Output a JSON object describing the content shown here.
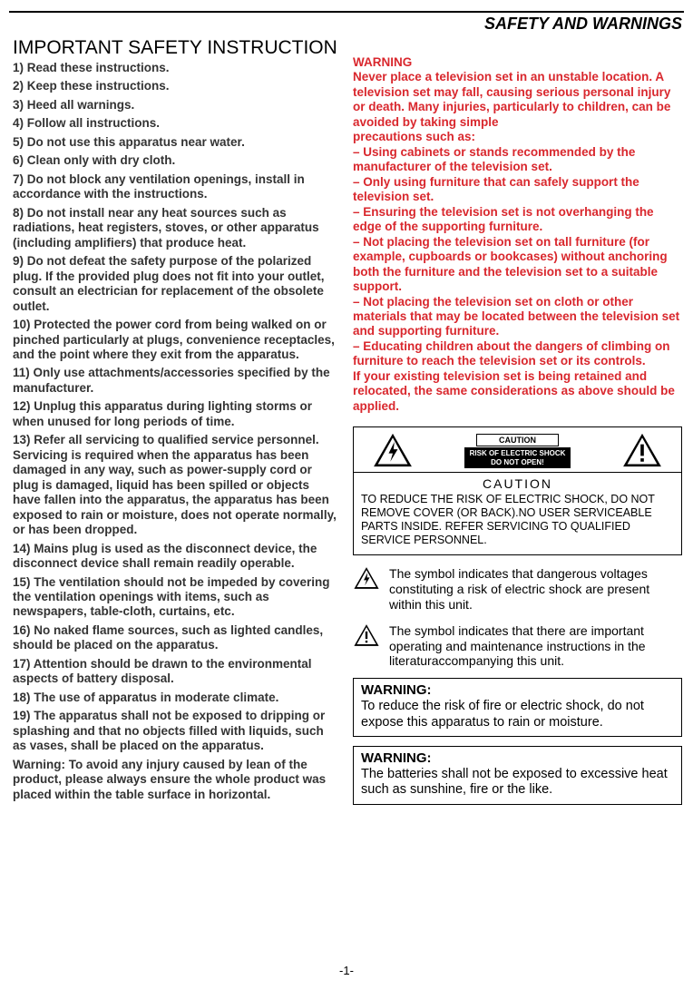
{
  "header": "SAFETY AND WARNINGS",
  "section_title": "IMPORTANT SAFETY INSTRUCTION",
  "instructions": [
    "1) Read these instructions.",
    "2) Keep these instructions.",
    "3) Heed all warnings.",
    "4) Follow all instructions.",
    "5) Do not use this apparatus near water.",
    "6) Clean only with dry cloth.",
    "7) Do not block any ventilation openings, install in accordance with the instructions.",
    "8) Do not install near any heat sources such as radiations, heat registers, stoves, or other apparatus (including amplifiers) that produce heat.",
    "9) Do not defeat the safety purpose of the polarized plug. If the provided plug does not fit into your outlet, consult an electrician for replacement of the obsolete outlet.",
    "10) Protected the power cord from being walked on or pinched particularly at plugs, convenience receptacles, and the point where they exit from the apparatus.",
    "11) Only use attachments/accessories specified by the manufacturer.",
    "12) Unplug this apparatus during lighting storms or when unused for long periods of time.",
    "13) Refer all servicing to qualified service personnel. Servicing is required when the apparatus has been damaged in any way, such as power-supply cord or plug is damaged, liquid has been spilled or objects have fallen into the apparatus, the apparatus has been exposed to rain or moisture, does not operate normally, or has been dropped.",
    "14) Mains plug is used as the disconnect device, the disconnect device shall remain readily operable.",
    "15) The ventilation should not be impeded by covering the ventilation openings with items, such as newspapers, table-cloth, curtains, etc.",
    "16) No naked flame sources, such as lighted candles, should be placed on the apparatus.",
    "17) Attention should be drawn to the environmental aspects of battery disposal.",
    "18) The use of apparatus in moderate climate.",
    "19) The apparatus shall not be exposed to dripping or splashing and that no objects filled with liquids, such as vases, shall be placed on the apparatus.",
    "Warning: To avoid any injury caused by lean of the product, please always ensure the whole product was placed within the table surface in horizontal."
  ],
  "red_warning": "WARNING\nNever place a television set in an unstable location. A television set may fall, causing serious personal injury or death. Many injuries, particularly to children, can be avoided by taking simple\nprecautions such as:\n– Using cabinets or stands recommended by the manufacturer of the television set.\n– Only using furniture that can safely support the television set.\n– Ensuring the television set is not overhanging the edge of the supporting furniture.\n– Not placing the television set on tall furniture (for example, cupboards or bookcases) without anchoring both the furniture and the television set to a suitable support.\n– Not placing the television set on cloth or other materials that may be located between the television set and supporting furniture.\n– Educating children about the dangers of climbing on furniture to reach the television set or its controls.\nIf your existing television set is being retained and relocated, the same considerations as above should be applied.",
  "caution": {
    "label": "CAUTION",
    "risk_line1": "RISK OF ELECTRIC SHOCK",
    "risk_line2": "DO NOT OPEN!",
    "heading": "CAUTION",
    "text": "TO REDUCE THE RISK OF ELECTRIC SHOCK, DO NOT  REMOVE COVER (OR BACK).NO  USER SERVICEABLE PARTS INSIDE. REFER SERVICING TO QUALIFIED SERVICE PERSONNEL."
  },
  "symbol1": "The symbol indicates that dangerous voltages  constituting a risk of electric shock are present within this unit.",
  "symbol2": "The symbol indicates that there  are important operating and maintenance instructions in the literaturaccompanying this unit.",
  "warning_box1": {
    "title": "WARNING:",
    "text": "To reduce the risk of fire or electric shock, do not expose this apparatus to rain or moisture."
  },
  "warning_box2": {
    "title": "WARNING:",
    "text": "The batteries shall not be exposed to excessive heat such as sunshine, fire or the like."
  },
  "page_num": "-1-",
  "colors": {
    "red": "#d9272d",
    "black": "#000000",
    "text_gray": "#333333"
  }
}
